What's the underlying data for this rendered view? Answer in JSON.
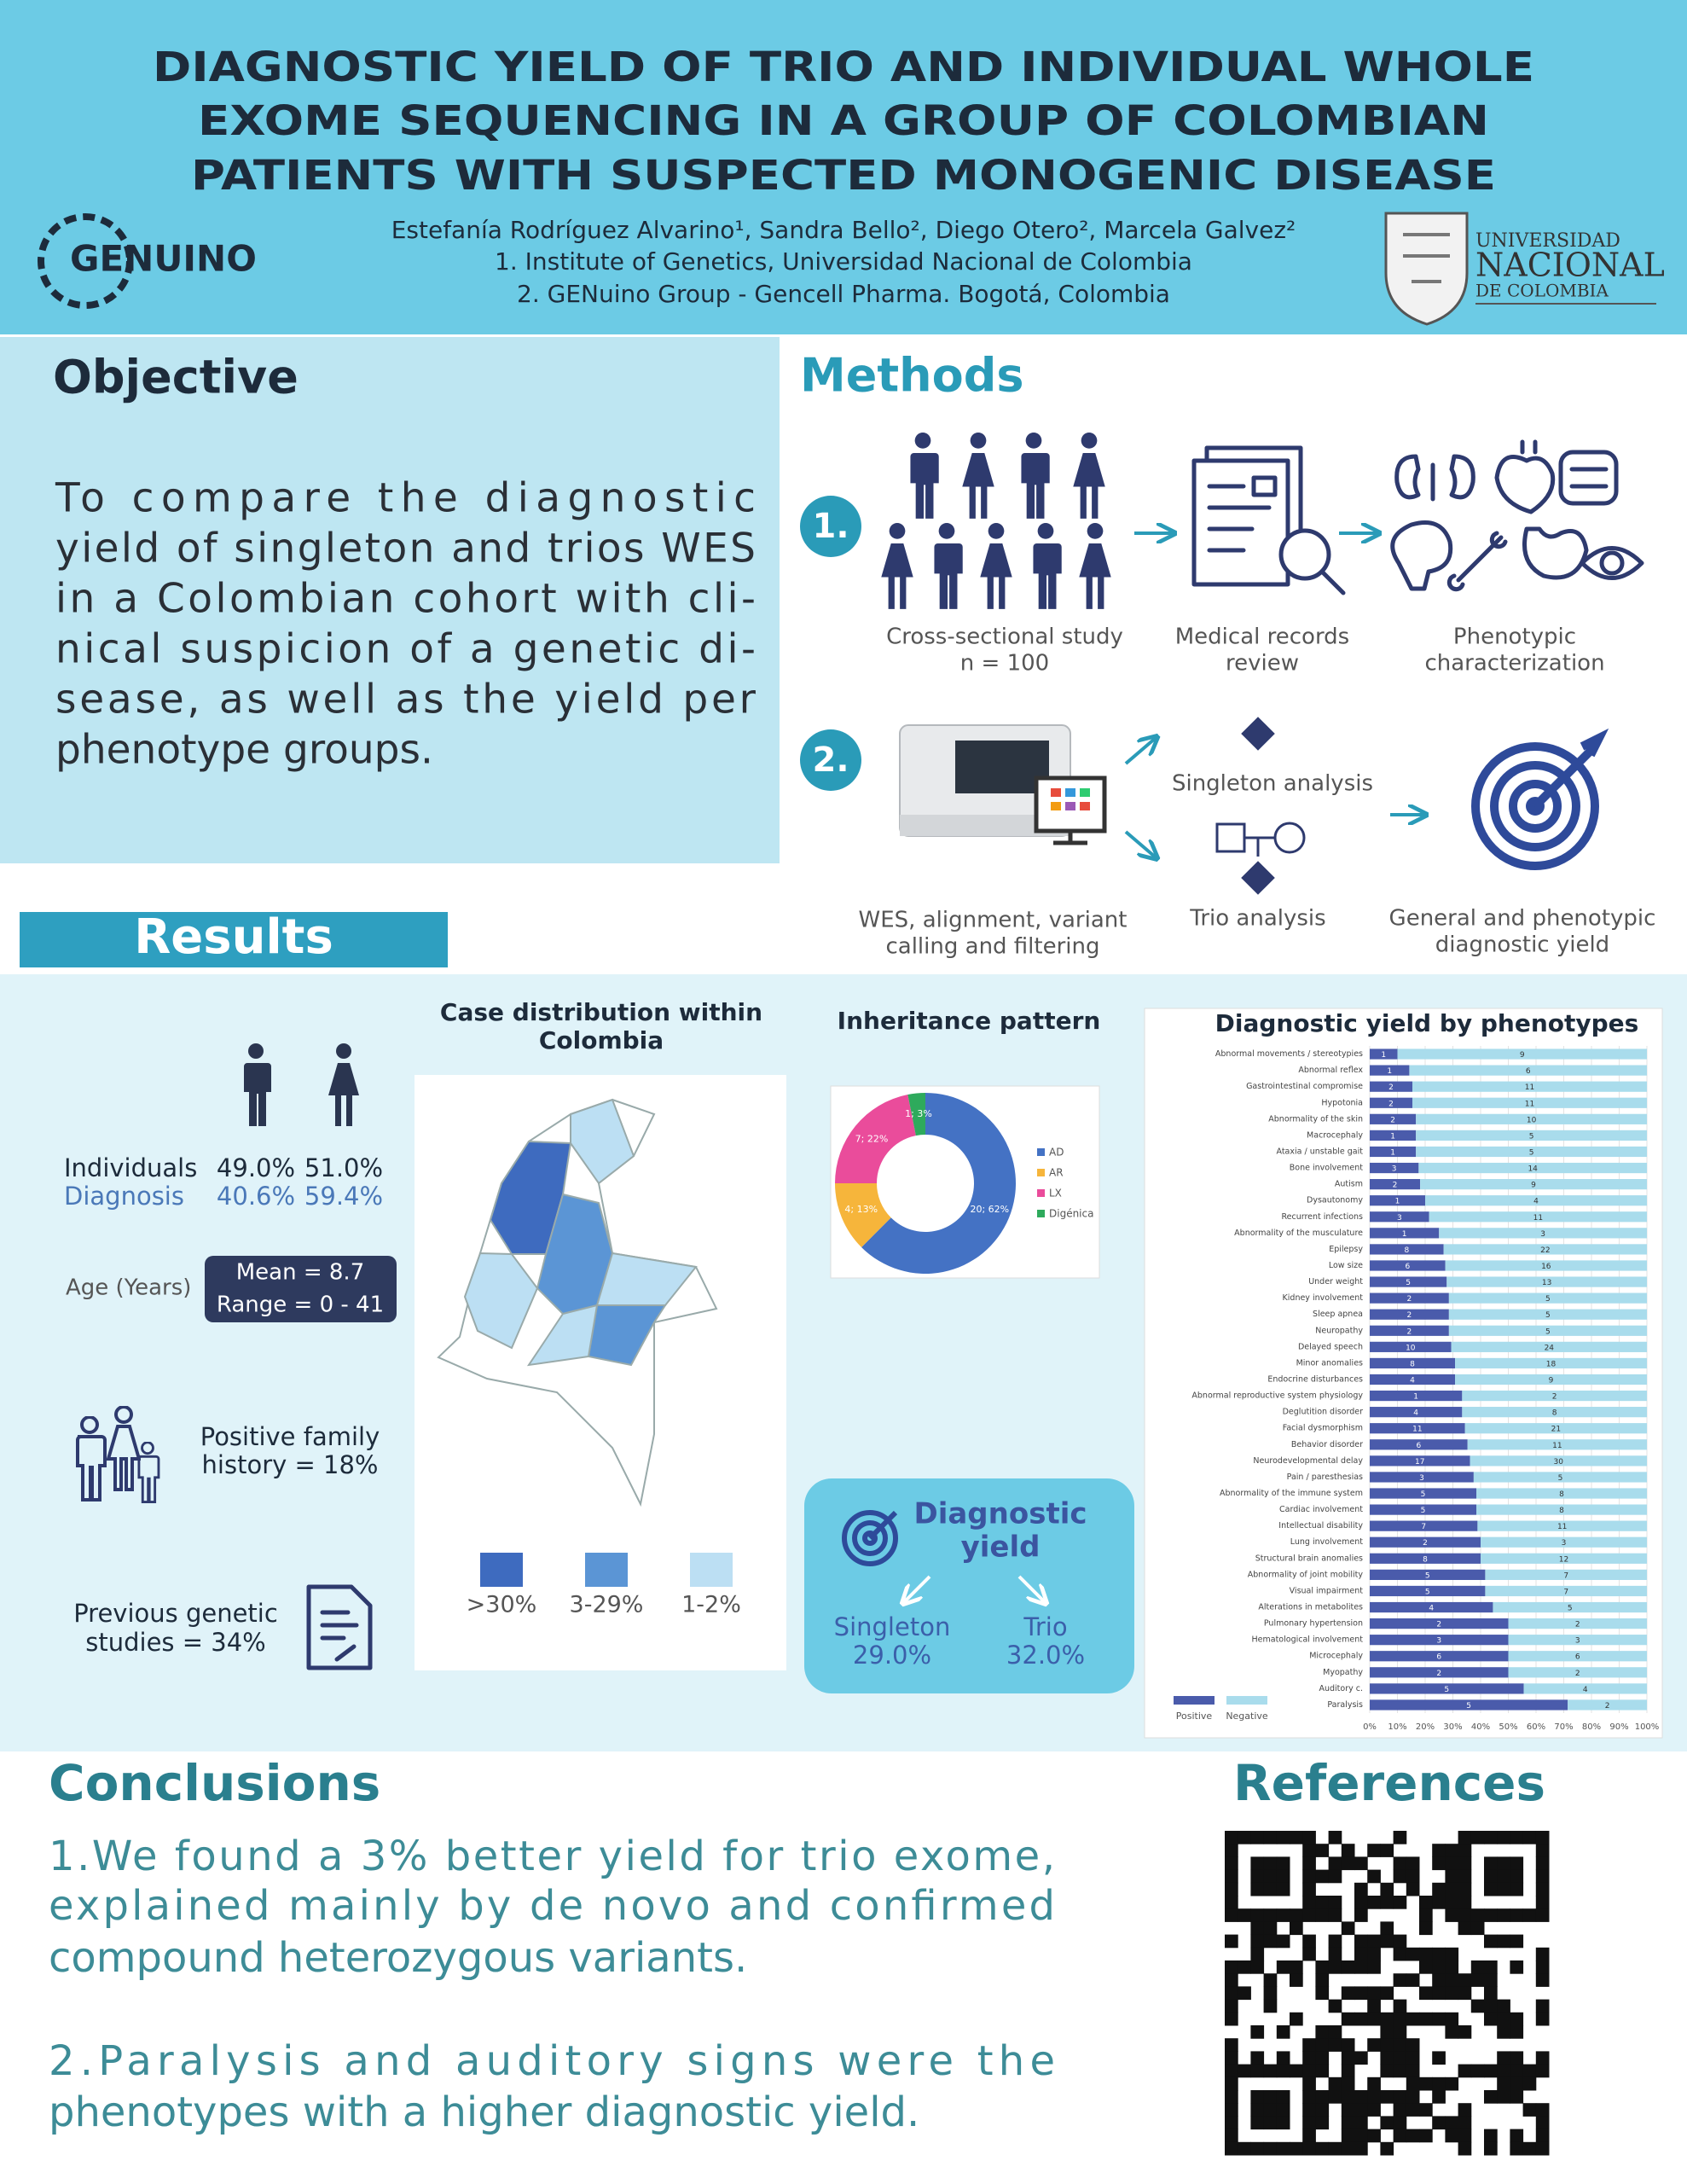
{
  "header": {
    "title": [
      "DIAGNOSTIC YIELD OF TRIO AND INDIVIDUAL WHOLE",
      "EXOME SEQUENCING IN A GROUP OF COLOMBIAN",
      "PATIENTS WITH SUSPECTED MONOGENIC DISEASE"
    ],
    "authors": "Estefanía Rodríguez Alvarino¹, Sandra Bello², Diego Otero², Marcela Galvez²",
    "affiliations": [
      "1. Institute of Genetics, Universidad Nacional de Colombia",
      "2.  GENuino Group - Gencell Pharma. Bogotá, Colombia"
    ],
    "logo_left": "GENUINO",
    "logo_right": [
      "UNIVERSIDAD",
      "NACIONAL",
      "DE COLOMBIA"
    ]
  },
  "objective": {
    "heading": "Objective",
    "lines": [
      "To compare the diagnostic",
      "yield of singleton and trios WES",
      "in a Colombian cohort with cli-",
      "nical suspicion of a genetic di-",
      "sease, as well as the yield per",
      "phenotype groups."
    ]
  },
  "methods": {
    "heading": "Methods",
    "steps": [
      {
        "number": "1.",
        "items": [
          {
            "caption": [
              "Cross-sectional study",
              "n = 100"
            ]
          },
          {
            "caption": [
              "Medical records",
              "review"
            ]
          },
          {
            "caption": [
              "Phenotypic",
              "characterization"
            ]
          }
        ]
      },
      {
        "number": "2.",
        "items": [
          {
            "caption": [
              "WES, alignment, variant",
              "calling and filtering"
            ]
          },
          {
            "caption": [
              "Singleton analysis"
            ]
          },
          {
            "caption": [
              "Trio analysis"
            ]
          },
          {
            "caption": [
              "General and  phenotypic",
              "diagnostic yield"
            ]
          }
        ]
      }
    ]
  },
  "results": {
    "heading": "Results",
    "demographics": [
      [
        "Individuals",
        "49.0%",
        "51.0%"
      ],
      [
        "Diagnosis",
        "40.6%",
        "59.4%"
      ]
    ],
    "age": {
      "label": "Age (Years)",
      "mean": "Mean = 8.7",
      "range": "Range = 0 - 41"
    },
    "family_history": [
      "Positive family",
      "history = 18%"
    ],
    "previous_studies": [
      "Previous genetic",
      "studies = 34%"
    ],
    "map": {
      "title": [
        "Case distribution within",
        "Colombia"
      ],
      "legend": [
        ">30%",
        "3-29%",
        "1-2%"
      ]
    },
    "diagnostic_yield": {
      "title": [
        "Diagnostic",
        "yield"
      ],
      "groups": [
        [
          "Singleton",
          "29.0%"
        ],
        [
          "Trio",
          "32.0%"
        ]
      ]
    }
  },
  "chart_data": [
    {
      "type": "pie",
      "title": "Inheritance pattern",
      "donut": true,
      "categories": [
        "AD",
        "AR",
        "LX",
        "Digénica"
      ],
      "values": [
        20,
        4,
        7,
        1
      ],
      "value_labels": [
        "20; 62%",
        "4; 13%",
        "7; 22%",
        "1; 3%"
      ],
      "colors": [
        "#4472c4",
        "#f6b53b",
        "#ea4c9b",
        "#2eaa5c"
      ],
      "legend": "right"
    },
    {
      "type": "bar",
      "orientation": "horizontal",
      "stacked": "percent",
      "title": "Diagnostic yield by phenotypes",
      "categories": [
        "Abnormal movements / stereotypies",
        "Abnormal reflex",
        "Gastrointestinal compromise",
        "Hypotonia",
        "Abnormality of the skin",
        "Macrocephaly",
        "Ataxia / unstable gait",
        "Bone involvement",
        "Autism",
        "Dysautonomy",
        "Recurrent infections",
        "Abnormality of the musculature",
        "Epilepsy",
        "Low size",
        "Under weight",
        "Kidney involvement",
        "Sleep apnea",
        "Neuropathy",
        "Delayed speech",
        "Minor anomalies",
        "Endocrine disturbances",
        "Abnormal reproductive system physiology",
        "Deglutition disorder",
        "Facial dysmorphism",
        "Behavior disorder",
        "Neurodevelopmental delay",
        "Pain / paresthesias",
        "Abnormality of the immune system",
        "Cardiac involvement",
        "Intellectual disability",
        "Lung involvement",
        "Structural brain anomalies",
        "Abnormality of joint mobility",
        "Visual impairment",
        "Alterations in metabolites",
        "Pulmonary hypertension",
        "Hematological involvement",
        "Microcephaly",
        "Myopathy",
        "Auditory c.",
        "Paralysis"
      ],
      "series": [
        {
          "name": "Positive",
          "color": "#4a5bab",
          "values": [
            1,
            1,
            2,
            2,
            2,
            1,
            1,
            3,
            2,
            1,
            3,
            1,
            8,
            6,
            5,
            2,
            2,
            2,
            10,
            8,
            4,
            1,
            4,
            11,
            6,
            17,
            3,
            5,
            5,
            7,
            2,
            8,
            5,
            5,
            4,
            2,
            3,
            6,
            2,
            5,
            5
          ]
        },
        {
          "name": "Negative",
          "color": "#a9dcec",
          "values": [
            9,
            6,
            11,
            11,
            10,
            5,
            5,
            14,
            9,
            4,
            11,
            3,
            22,
            16,
            13,
            5,
            5,
            5,
            24,
            18,
            9,
            2,
            8,
            21,
            11,
            30,
            5,
            8,
            8,
            11,
            3,
            12,
            7,
            7,
            5,
            2,
            3,
            6,
            2,
            4,
            2
          ]
        }
      ],
      "xlim": [
        0,
        100
      ],
      "xticks": [
        {
          "value": 0,
          "label": "0%"
        },
        {
          "value": 10,
          "label": "10%"
        },
        {
          "value": 20,
          "label": "20%"
        },
        {
          "value": 30,
          "label": "30%"
        },
        {
          "value": 40,
          "label": "40%"
        },
        {
          "value": 50,
          "label": "50%"
        },
        {
          "value": 60,
          "label": "60%"
        },
        {
          "value": 70,
          "label": "70%"
        },
        {
          "value": 80,
          "label": "80%"
        },
        {
          "value": 90,
          "label": "90%"
        },
        {
          "value": 100,
          "label": "100%"
        }
      ],
      "grid": true,
      "legend": "bottom-left"
    }
  ],
  "conclusions": {
    "heading": "Conclusions",
    "lines": [
      "1.We found a 3% better yield for trio exome,",
      "explained mainly  by de novo and confirmed",
      "compound heterozygous variants.",
      "2.Paralysis and auditory signs were the",
      "phenotypes with a higher diagnostic yield."
    ]
  },
  "references": {
    "heading": "References"
  }
}
